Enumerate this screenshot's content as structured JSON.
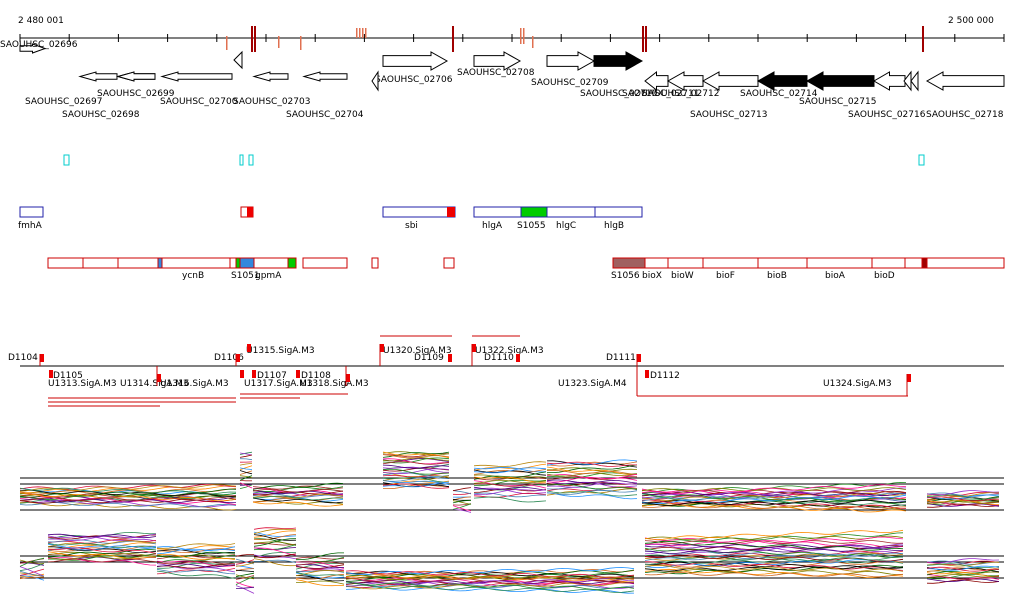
{
  "ruler": {
    "start_label": "2 480 001",
    "end_label": "2 500 000"
  },
  "genes_top": [
    {
      "label": "SAOUHSC_02696",
      "strand": "+",
      "fill": "white"
    },
    {
      "label": "SAOUHSC_02697",
      "strand": "-",
      "fill": "white"
    },
    {
      "label": "SAOUHSC_02698",
      "strand": "-",
      "fill": "white"
    },
    {
      "label": "SAOUHSC_02699",
      "strand": "-",
      "fill": "white"
    },
    {
      "label": "SAOUHSC_02700",
      "strand": "-",
      "fill": "white"
    },
    {
      "label": "SAOUHSC_02703",
      "strand": "-",
      "fill": "white"
    },
    {
      "label": "SAOUHSC_02704",
      "strand": "-",
      "fill": "white"
    },
    {
      "label": "SAOUHSC_02706",
      "strand": "+",
      "fill": "white"
    },
    {
      "label": "SAOUHSC_02708",
      "strand": "+",
      "fill": "white"
    },
    {
      "label": "SAOUHSC_02709",
      "strand": "+",
      "fill": "white"
    },
    {
      "label": "SAOUHSC_02710",
      "strand": "+",
      "fill": "black"
    },
    {
      "label": "SAOUHSC_02711",
      "strand": "-",
      "fill": "white"
    },
    {
      "label": "SAOUHSC_02712",
      "strand": "-",
      "fill": "white"
    },
    {
      "label": "SAOUHSC_02713",
      "strand": "-",
      "fill": "white"
    },
    {
      "label": "SAOUHSC_02714",
      "strand": "-",
      "fill": "black"
    },
    {
      "label": "SAOUHSC_02715",
      "strand": "-",
      "fill": "black"
    },
    {
      "label": "SAOUHSC_02716",
      "strand": "-",
      "fill": "white"
    },
    {
      "label": "SAOUHSC_02718",
      "strand": "-",
      "fill": "white"
    }
  ],
  "blue_features": [
    "fmhA",
    "sbi",
    "hlgA",
    "S1055",
    "hlgC",
    "hlgB"
  ],
  "red_features": [
    "ycnB",
    "S1051",
    "gpmA",
    "S1056",
    "bioX",
    "bioW",
    "bioF",
    "bioB",
    "bioA",
    "bioD"
  ],
  "promoter_labels": [
    "D1104",
    "D1105",
    "U1313.SigA.M3",
    "U1314.SigA.M3",
    "U1316.SigA.M3",
    "D1106",
    "U1315.SigA.M3",
    "D1107",
    "U1317.SigA.M3",
    "D1108",
    "U1318.SigA.M3",
    "U1320.SigA.M3",
    "D1109",
    "U1322.SigA.M3",
    "D1110",
    "U1323.SigA.M4",
    "D1111",
    "D1112",
    "U1324.SigA.M3"
  ],
  "colors": {
    "axis": "#000000",
    "mark": "#a00000",
    "blue_outline": "#2222aa",
    "red_outline": "#cc0000",
    "green": "#00cc00",
    "brown": "#a06060",
    "cyan": "#00cccc"
  }
}
